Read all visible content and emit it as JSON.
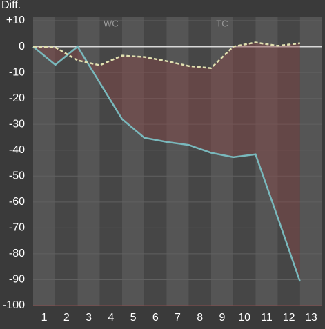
{
  "chart_data": {
    "type": "line",
    "y_label": "Diff.",
    "x": [
      0.5,
      1.5,
      2.5,
      3.5,
      4.5,
      5.5,
      6.5,
      7.5,
      8.5,
      9.5,
      10.5,
      11.5,
      12.5
    ],
    "xlim": [
      0.5,
      13.5
    ],
    "xticks": [
      1,
      2,
      3,
      4,
      5,
      6,
      7,
      8,
      9,
      10,
      11,
      12,
      13
    ],
    "ylim": [
      -100,
      10
    ],
    "yticks": [
      {
        "value": 10,
        "label": "+10"
      },
      0,
      -10,
      -20,
      -30,
      -40,
      -50,
      -60,
      -70,
      -80,
      -90,
      -100
    ],
    "grid": true,
    "series": [
      {
        "color": "#79b8bc",
        "values": [
          0,
          -7,
          0,
          -14,
          -28,
          -35.2,
          -36.8,
          -38,
          -41,
          -42.7,
          -41.6,
          -66,
          -90.7
        ]
      },
      {
        "color": "#e0e0b0",
        "dashed": true,
        "values": [
          0,
          -0.3,
          -5.3,
          -7.2,
          -3.5,
          -4,
          -5.6,
          -7.5,
          -8.3,
          0,
          1.6,
          0.3,
          1.3
        ]
      }
    ],
    "fill_color": "#8a4a4a",
    "annotations": [
      {
        "text": "WC",
        "x": 4
      },
      {
        "text": "TC",
        "x": 9
      }
    ]
  }
}
